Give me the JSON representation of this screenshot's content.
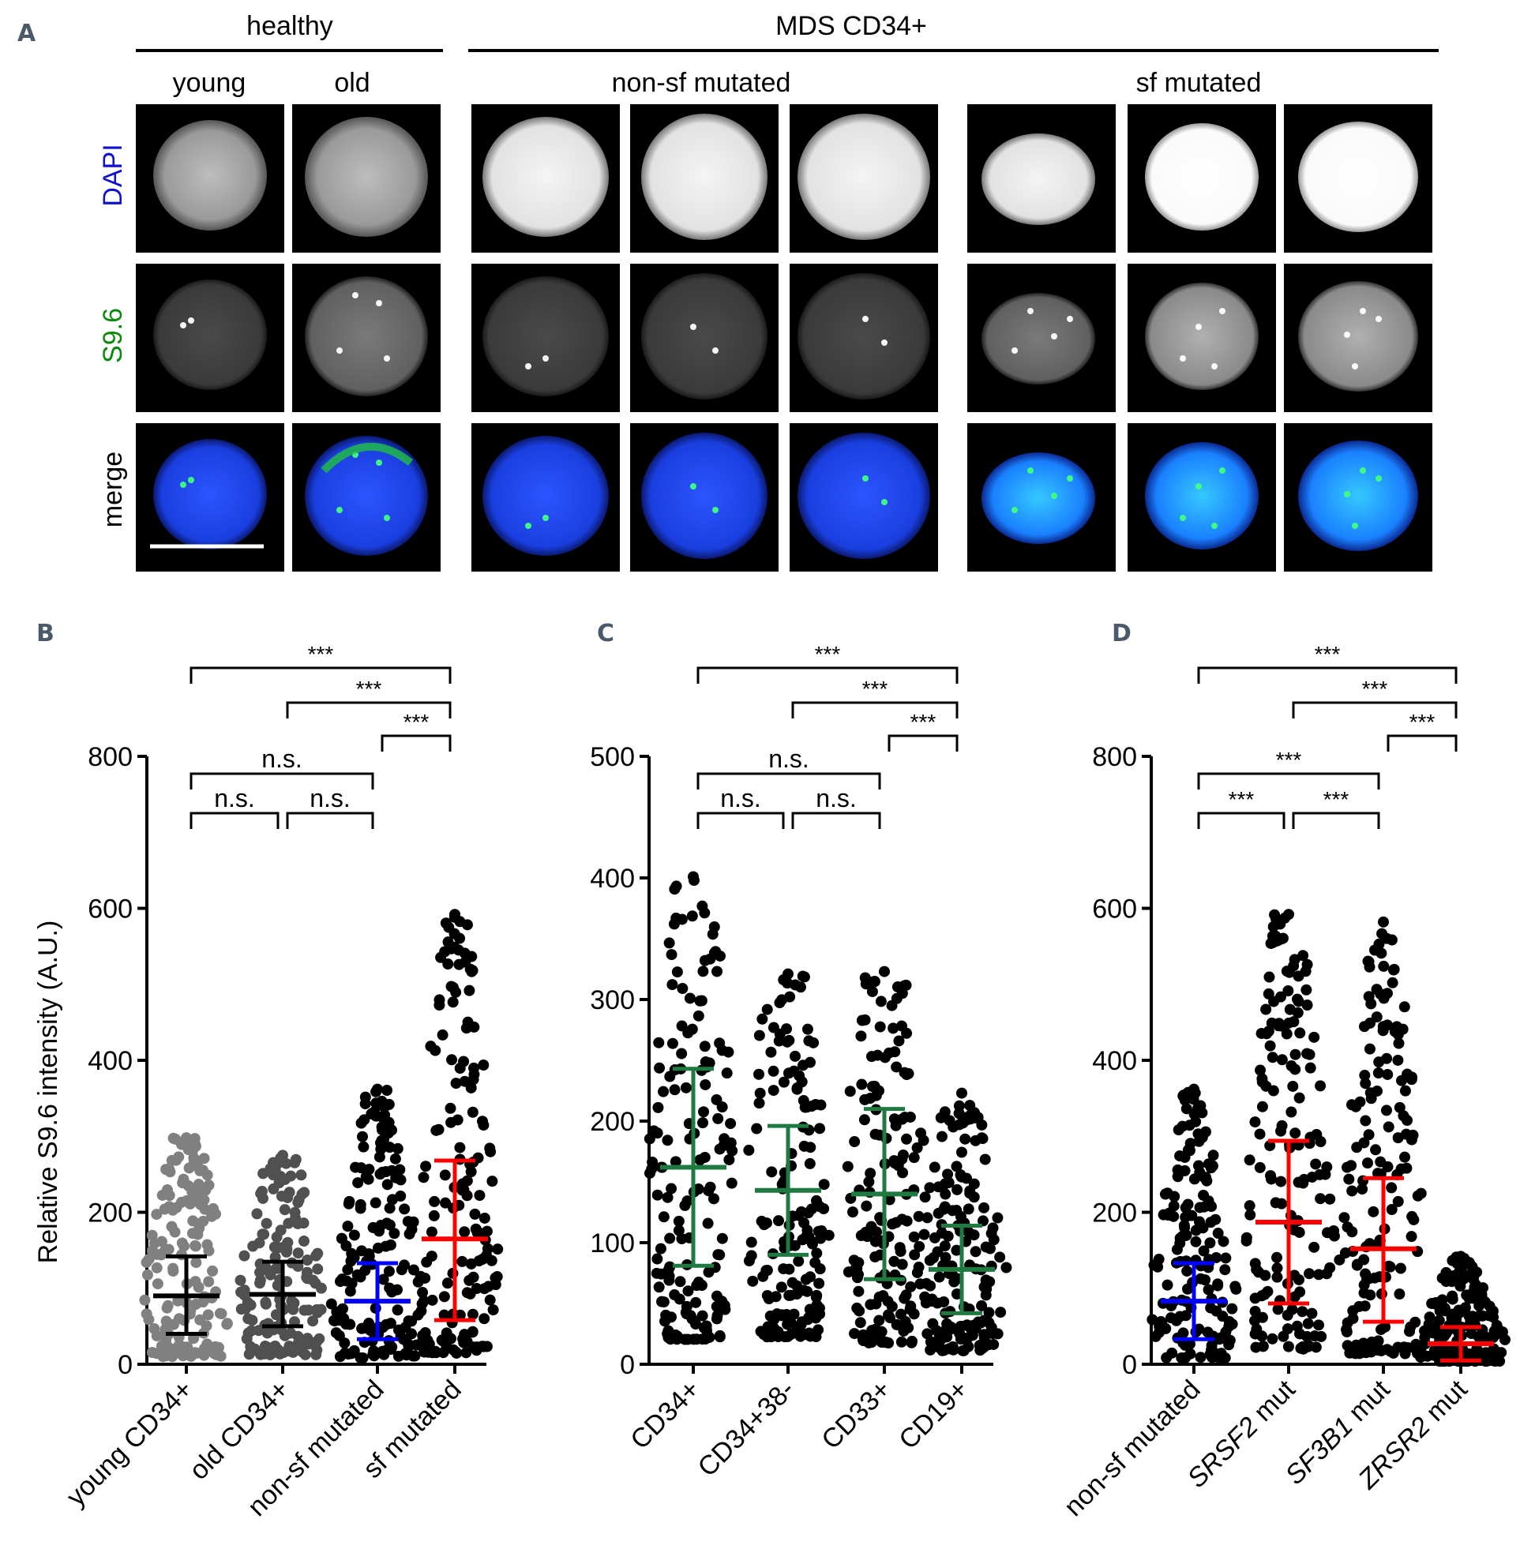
{
  "panelA": {
    "letter": "A",
    "group_healthy": "healthy",
    "group_mds": "MDS CD34+",
    "sub_young": "young",
    "sub_old": "old",
    "sub_nonsf": "non-sf mutated",
    "sub_sf": "sf mutated",
    "row_dapi": "DAPI",
    "row_s96": "S9.6",
    "row_merge": "merge",
    "colors": {
      "dapi": "#1010d0",
      "s96": "#0a8a0a",
      "merge_nucleus": "#1a3fe0"
    }
  },
  "chart_data": [
    {
      "panel": "B",
      "type": "scatter",
      "categories": [
        "young CD34+",
        "old CD34+",
        "non-sf mutated",
        "sf mutated"
      ],
      "ylabel": "Relative S9.6 intensity (A.U.)",
      "ylim": [
        0,
        800
      ],
      "yticks": [
        "0",
        "200",
        "400",
        "600",
        "800"
      ],
      "series": [
        {
          "values": {
            "mean": 90,
            "sd_low": 40,
            "sd_high": 142,
            "max": 298
          },
          "color": "#808080",
          "bar_color": "#000000"
        },
        {
          "values": {
            "mean": 92,
            "sd_low": 50,
            "sd_high": 135,
            "max": 275
          },
          "color": "#505050",
          "bar_color": "#000000"
        },
        {
          "values": {
            "mean": 83,
            "sd_low": 33,
            "sd_high": 133,
            "max": 362
          },
          "color": "#000000",
          "bar_color": "#0000ff"
        },
        {
          "values": {
            "mean": 165,
            "sd_low": 58,
            "sd_high": 268,
            "max": 592
          },
          "color": "#000000",
          "bar_color": "#ff0000"
        }
      ],
      "annotations": [
        {
          "from": 0,
          "to": 1,
          "text": "n.s."
        },
        {
          "from": 1,
          "to": 2,
          "text": "n.s."
        },
        {
          "from": 0,
          "to": 2,
          "text": "n.s."
        },
        {
          "from": 2,
          "to": 3,
          "text": "***"
        },
        {
          "from": 1,
          "to": 3,
          "text": "***"
        },
        {
          "from": 0,
          "to": 3,
          "text": "***"
        }
      ]
    },
    {
      "panel": "C",
      "type": "scatter",
      "categories": [
        "CD34+",
        "CD34+38-",
        "CD33+",
        "CD19+"
      ],
      "ylim": [
        0,
        500
      ],
      "yticks": [
        "0",
        "100",
        "200",
        "300",
        "400",
        "500"
      ],
      "series": [
        {
          "values": {
            "mean": 162,
            "sd_low": 81,
            "sd_high": 243,
            "max": 401
          },
          "color": "#000000",
          "bar_color": "#1e7a40"
        },
        {
          "values": {
            "mean": 143,
            "sd_low": 90,
            "sd_high": 196,
            "max": 321
          },
          "color": "#000000",
          "bar_color": "#1e7a40"
        },
        {
          "values": {
            "mean": 140,
            "sd_low": 70,
            "sd_high": 210,
            "max": 323
          },
          "color": "#000000",
          "bar_color": "#1e7a40"
        },
        {
          "values": {
            "mean": 78,
            "sd_low": 42,
            "sd_high": 114,
            "max": 223
          },
          "color": "#000000",
          "bar_color": "#1e7a40"
        }
      ],
      "annotations": [
        {
          "from": 0,
          "to": 1,
          "text": "n.s."
        },
        {
          "from": 1,
          "to": 2,
          "text": "n.s."
        },
        {
          "from": 0,
          "to": 2,
          "text": "n.s."
        },
        {
          "from": 2,
          "to": 3,
          "text": "***"
        },
        {
          "from": 1,
          "to": 3,
          "text": "***"
        },
        {
          "from": 0,
          "to": 3,
          "text": "***"
        }
      ]
    },
    {
      "panel": "D",
      "type": "scatter",
      "categories": [
        "non-sf mutated",
        "SRSF2 mut",
        "SF3B1 mut",
        "ZRSR2 mut"
      ],
      "italic_prefix": [
        false,
        true,
        true,
        true
      ],
      "ylim": [
        0,
        800
      ],
      "yticks": [
        "0",
        "200",
        "400",
        "600",
        "800"
      ],
      "series": [
        {
          "values": {
            "mean": 83,
            "sd_low": 33,
            "sd_high": 133,
            "max": 362
          },
          "color": "#000000",
          "bar_color": "#0000ff"
        },
        {
          "values": {
            "mean": 187,
            "sd_low": 80,
            "sd_high": 294,
            "max": 592
          },
          "color": "#000000",
          "bar_color": "#ff0000"
        },
        {
          "values": {
            "mean": 152,
            "sd_low": 56,
            "sd_high": 245,
            "max": 582
          },
          "color": "#000000",
          "bar_color": "#ff0000"
        },
        {
          "values": {
            "mean": 27,
            "sd_low": 5,
            "sd_high": 49,
            "max": 142
          },
          "color": "#000000",
          "bar_color": "#ff0000"
        }
      ],
      "annotations": [
        {
          "from": 0,
          "to": 1,
          "text": "***"
        },
        {
          "from": 1,
          "to": 2,
          "text": "***"
        },
        {
          "from": 0,
          "to": 2,
          "text": "***"
        },
        {
          "from": 2,
          "to": 3,
          "text": "***"
        },
        {
          "from": 1,
          "to": 3,
          "text": "***"
        },
        {
          "from": 0,
          "to": 3,
          "text": "***"
        }
      ]
    }
  ]
}
